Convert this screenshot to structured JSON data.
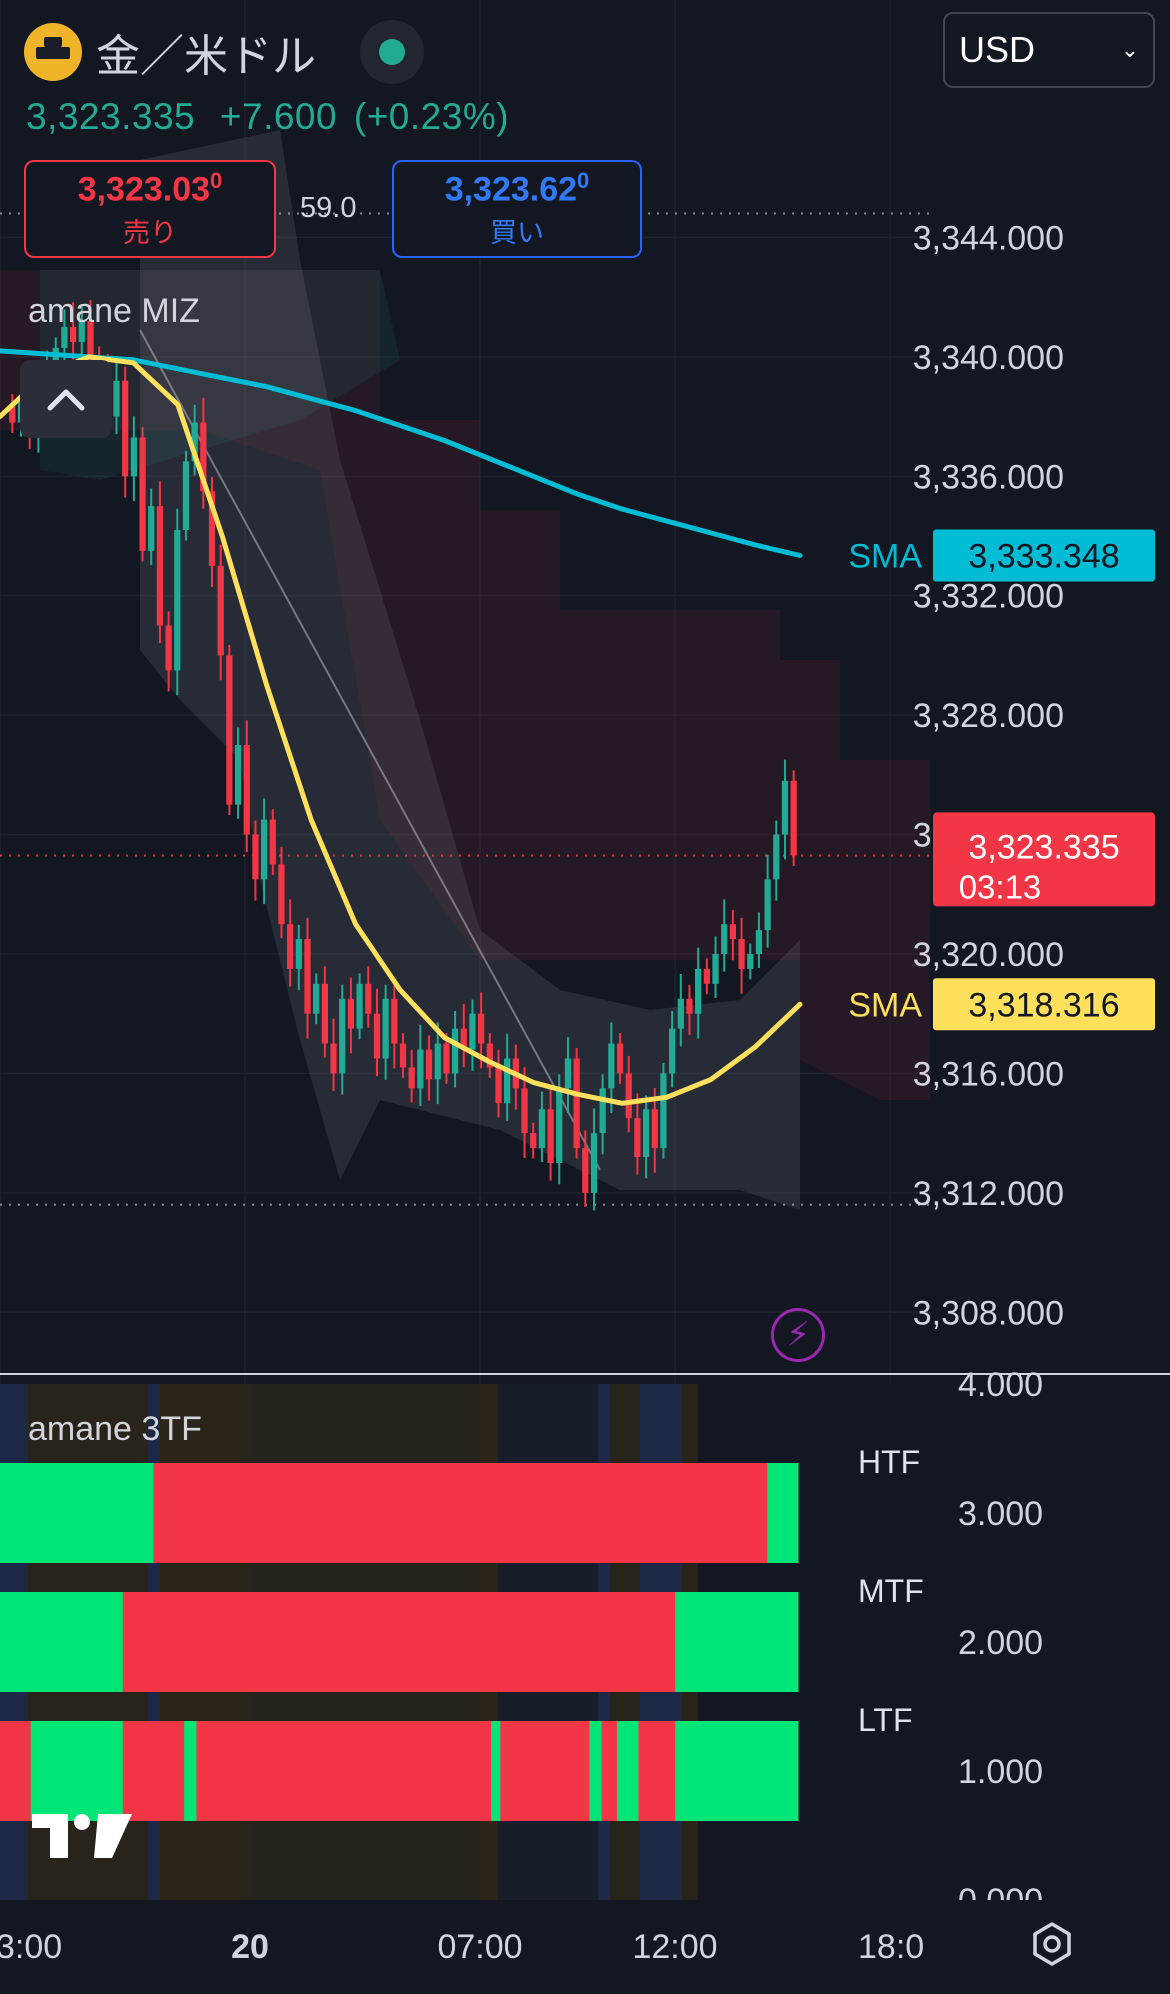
{
  "header": {
    "title": "金／米ドル",
    "currency_select": "USD"
  },
  "quote": {
    "last": "3,323.335",
    "change": "+7.600",
    "change_pct": "(+0.23%)"
  },
  "sell_box": {
    "price_main": "3,323.03",
    "price_pip": "0",
    "label": "売り"
  },
  "buy_box": {
    "price_main": "3,323.62",
    "price_pip": "0",
    "label": "買い"
  },
  "spread": "59.0",
  "indicators": {
    "main": "amane MIZ",
    "lower": "amane 3TF"
  },
  "price_labels": {
    "sma_blue": {
      "tag": "SMA",
      "value": "3,333.348",
      "color": "#00bcd4"
    },
    "sma_yellow": {
      "tag": "SMA",
      "value": "3,318.316",
      "color": "#ffe05c"
    },
    "current": {
      "value": "3,323.335",
      "countdown": "03:13",
      "color": "#f23645"
    }
  },
  "chart_data": [
    {
      "type": "candlestick",
      "title": "金／米ドル",
      "ylim": [
        3306,
        3348
      ],
      "yticks": [
        "3,344.000",
        "3,340.000",
        "3,336.000",
        "3,332.000",
        "3,328.000",
        "3,324.000",
        "3,320.000",
        "3,316.000",
        "3,312.000",
        "3,308.000"
      ],
      "ytick_values": [
        3344,
        3340,
        3336,
        3332,
        3328,
        3324,
        3320,
        3316,
        3312,
        3308
      ],
      "xticks": [
        "3:00",
        "20",
        "07:00",
        "12:00",
        "18:0"
      ],
      "dotted_levels": [
        3344.8,
        3323.3,
        3311.6
      ],
      "close_path": [
        3337.8,
        3338.5,
        3337.5,
        3338.8,
        3339.5,
        3340.3,
        3341.0,
        3340.5,
        3341.2,
        3340.0,
        3339.5,
        3338.0,
        3339.2,
        3336.0,
        3337.3,
        3333.5,
        3335.0,
        3331.0,
        3329.5,
        3334.2,
        3336.5,
        3337.8,
        3335.5,
        3333.0,
        3330.0,
        3325.0,
        3327.0,
        3324.0,
        3322.5,
        3324.5,
        3323.0,
        3321.0,
        3319.5,
        3320.5,
        3318.0,
        3319.0,
        3317.0,
        3316.0,
        3318.5,
        3317.5,
        3319.0,
        3318.0,
        3316.5,
        3318.5,
        3317.0,
        3316.2,
        3315.5,
        3316.8,
        3315.8,
        3317.0,
        3316.0,
        3317.5,
        3316.8,
        3318.0,
        3317.0,
        3316.2,
        3315.0,
        3316.5,
        3315.5,
        3314.0,
        3313.5,
        3314.8,
        3313.0,
        3315.5,
        3316.5,
        3313.5,
        3312.0,
        3314.0,
        3315.5,
        3317.0,
        3316.0,
        3314.5,
        3313.2,
        3314.8,
        3313.5,
        3316.0,
        3317.5,
        3318.5,
        3318.0,
        3319.5,
        3319.0,
        3320.0,
        3321.0,
        3320.5,
        3319.5,
        3320.0,
        3320.8,
        3322.5,
        3324.0,
        3325.8,
        3323.3
      ],
      "series": [
        {
          "name": "SMA",
          "color": "#00bcd4",
          "values": [
            3340.2,
            3340.1,
            3340.0,
            3339.9,
            3339.6,
            3339.3,
            3339.0,
            3338.6,
            3338.2,
            3337.7,
            3337.2,
            3336.6,
            3336.0,
            3335.4,
            3334.9,
            3334.5,
            3334.1,
            3333.7,
            3333.348
          ]
        },
        {
          "name": "SMA",
          "color": "#ffe05c",
          "values": [
            3338.0,
            3339.4,
            3340.0,
            3339.8,
            3338.4,
            3334.0,
            3329.0,
            3324.5,
            3321.0,
            3318.8,
            3317.2,
            3316.4,
            3315.7,
            3315.3,
            3315.0,
            3315.2,
            3315.8,
            3316.9,
            3318.316
          ]
        }
      ]
    },
    {
      "type": "heatmap",
      "title": "amane 3TF",
      "ylim": [
        0,
        4
      ],
      "yticks": [
        "4.000",
        "3.000",
        "2.000",
        "1.000",
        "0.000"
      ],
      "ytick_values": [
        4,
        3,
        2,
        1,
        0
      ],
      "rows": [
        {
          "name": "HTF",
          "level": 3,
          "segments": [
            {
              "color": "green",
              "len": 5
            },
            {
              "color": "red",
              "len": 20
            },
            {
              "color": "green",
              "len": 1
            }
          ]
        },
        {
          "name": "MTF",
          "level": 2,
          "segments": [
            {
              "color": "green",
              "len": 4
            },
            {
              "color": "red",
              "len": 18
            },
            {
              "color": "green",
              "len": 4
            }
          ]
        },
        {
          "name": "LTF",
          "level": 1,
          "segments": [
            {
              "color": "red",
              "len": 1
            },
            {
              "color": "green",
              "len": 3
            },
            {
              "color": "red",
              "len": 2
            },
            {
              "color": "green",
              "len": 0.4
            },
            {
              "color": "red",
              "len": 9.6
            },
            {
              "color": "green",
              "len": 0.3
            },
            {
              "color": "red",
              "len": 2.9
            },
            {
              "color": "green",
              "len": 0.4
            },
            {
              "color": "red",
              "len": 0.5
            },
            {
              "color": "green",
              "len": 0.7
            },
            {
              "color": "red",
              "len": 1.2
            },
            {
              "color": "green",
              "len": 4
            }
          ]
        }
      ]
    }
  ]
}
